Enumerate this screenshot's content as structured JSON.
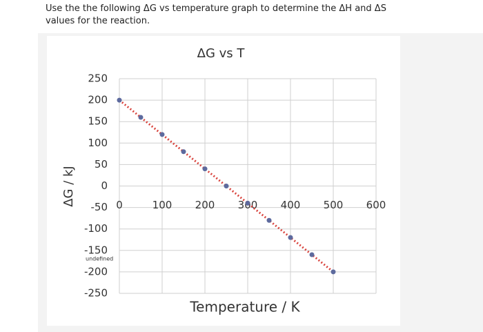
{
  "question": "Use the the following ΔG vs temperature graph to determine the ΔH and ΔS values for the reaction.",
  "chart_data": {
    "type": "scatter",
    "title": "ΔG vs T",
    "x_label": "Temperature / K",
    "y_label": "ΔG / kJ",
    "x": [
      0,
      50,
      100,
      150,
      200,
      250,
      300,
      350,
      400,
      450,
      500
    ],
    "values": [
      200,
      160,
      120,
      80,
      40,
      0,
      -40,
      -80,
      -120,
      -160,
      -200
    ],
    "color": "#5d6a9e",
    "line_color": "#d9453f",
    "line_style": "dotted",
    "xlim": [
      0,
      600
    ],
    "xticks": [
      0,
      100,
      200,
      300,
      400,
      500,
      600
    ],
    "ylim": [
      -250,
      250
    ],
    "yticks": [
      -250,
      -200,
      -150,
      -100,
      -50,
      0,
      50,
      100,
      150,
      200,
      250
    ],
    "grid": true,
    "annotation": "undefined"
  }
}
